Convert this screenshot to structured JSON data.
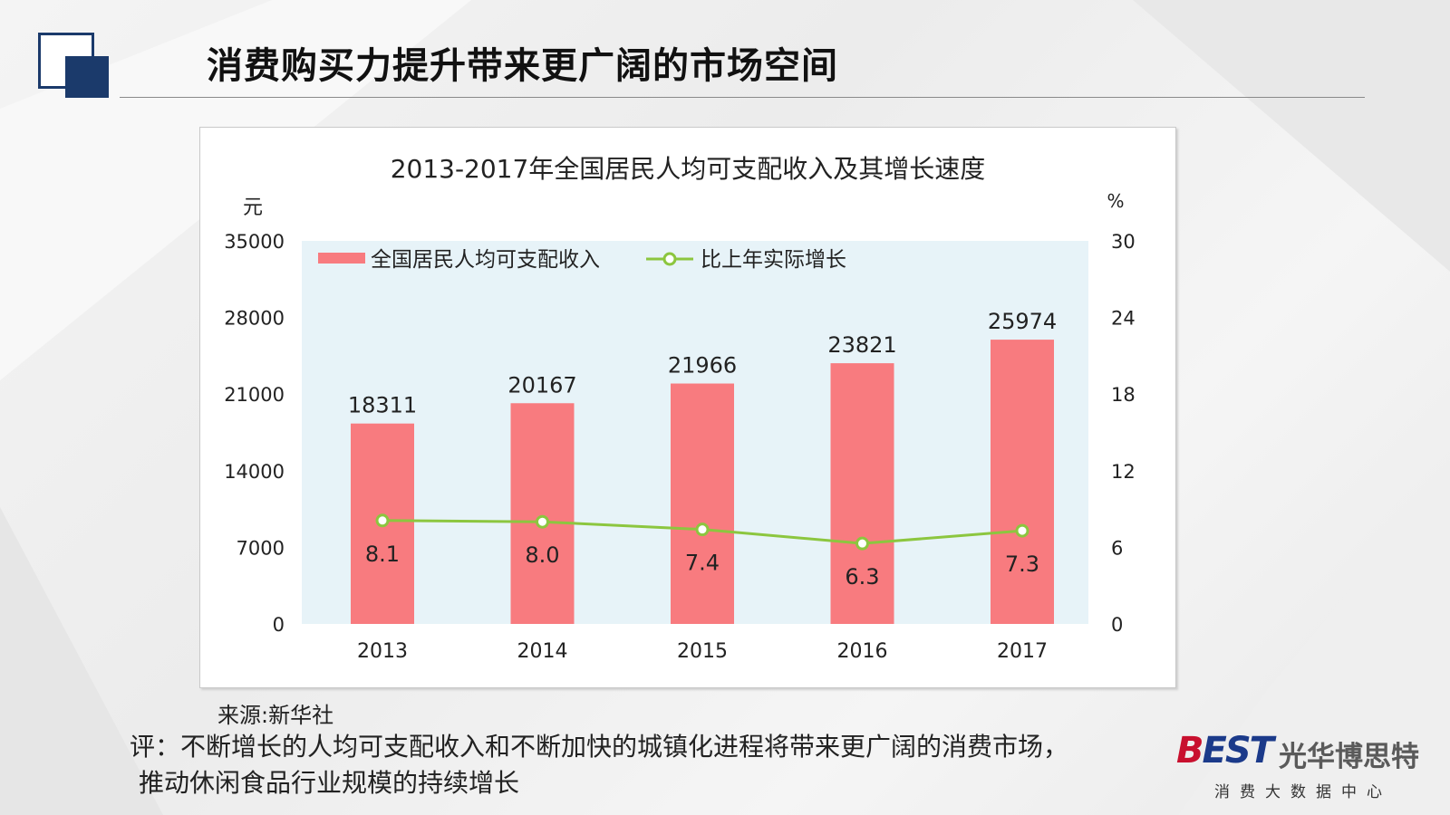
{
  "slide": {
    "title": "消费购买力提升带来更广阔的市场空间",
    "source": "来源:新华社",
    "comment_line1": "评：不断增长的人均可支配收入和不断加快的城镇化进程将带来更广阔的消费市场，",
    "comment_line2": "推动休闲食品行业规模的持续增长"
  },
  "brand": {
    "mark_b": "B",
    "mark_rest": "EST",
    "name": "光华博思特",
    "subtitle": "消费大数据中心"
  },
  "colors": {
    "accent": "#1b3a6b",
    "bar": "#f87b7f",
    "line": "#8cc63f",
    "plot_bg": "#e7f3f8"
  },
  "chart_data": {
    "type": "bar",
    "title": "2013-2017年全国居民人均可支配收入及其增长速度",
    "categories": [
      "2013",
      "2014",
      "2015",
      "2016",
      "2017"
    ],
    "series": [
      {
        "name": "全国居民人均可支配收入",
        "type": "bar",
        "axis": "left",
        "values": [
          18311,
          20167,
          21966,
          23821,
          25974
        ],
        "labels": [
          "18311",
          "20167",
          "21966",
          "23821",
          "25974"
        ]
      },
      {
        "name": "比上年实际增长",
        "type": "line",
        "axis": "right",
        "values": [
          8.1,
          8.0,
          7.4,
          6.3,
          7.3
        ],
        "labels": [
          "8.1",
          "8.0",
          "7.4",
          "6.3",
          "7.3"
        ]
      }
    ],
    "y_left": {
      "unit": "元",
      "range": [
        0,
        35000
      ],
      "ticks": [
        "0",
        "7000",
        "14000",
        "21000",
        "28000",
        "35000"
      ]
    },
    "y_right": {
      "unit": "%",
      "range": [
        0,
        30
      ],
      "ticks": [
        "0",
        "6",
        "12",
        "18",
        "24",
        "30"
      ]
    },
    "legend_position": "top-left",
    "grid": false
  }
}
